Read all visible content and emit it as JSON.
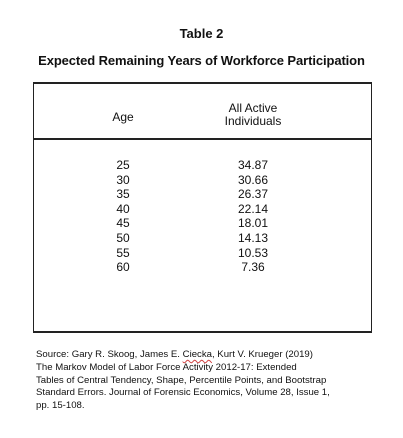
{
  "title": "Table 2",
  "subtitle": "Expected Remaining Years of Workforce Participation",
  "table": {
    "headers": {
      "age": "Age",
      "active_line1": "All Active",
      "active_line2": "Individuals"
    },
    "rows": [
      {
        "age": "25",
        "value": "34.87"
      },
      {
        "age": "30",
        "value": "30.66"
      },
      {
        "age": "35",
        "value": "26.37"
      },
      {
        "age": "40",
        "value": "22.14"
      },
      {
        "age": "45",
        "value": "18.01"
      },
      {
        "age": "50",
        "value": "14.13"
      },
      {
        "age": "55",
        "value": "10.53"
      },
      {
        "age": "60",
        "value": "7.36"
      }
    ]
  },
  "source": {
    "line1_pre": "Source: Gary R. Skoog, James E. ",
    "line1_flagged": "Ciecka",
    "line1_post": ", Kurt V. Krueger (2019)",
    "line2": "The Markov Model of Labor Force Activity 2012-17: Extended",
    "line3": "Tables of Central Tendency, Shape, Percentile Points, and Bootstrap",
    "line4": "Standard Errors. Journal of Forensic Economics, Volume 28, Issue 1,",
    "line5": "pp. 15-108."
  }
}
